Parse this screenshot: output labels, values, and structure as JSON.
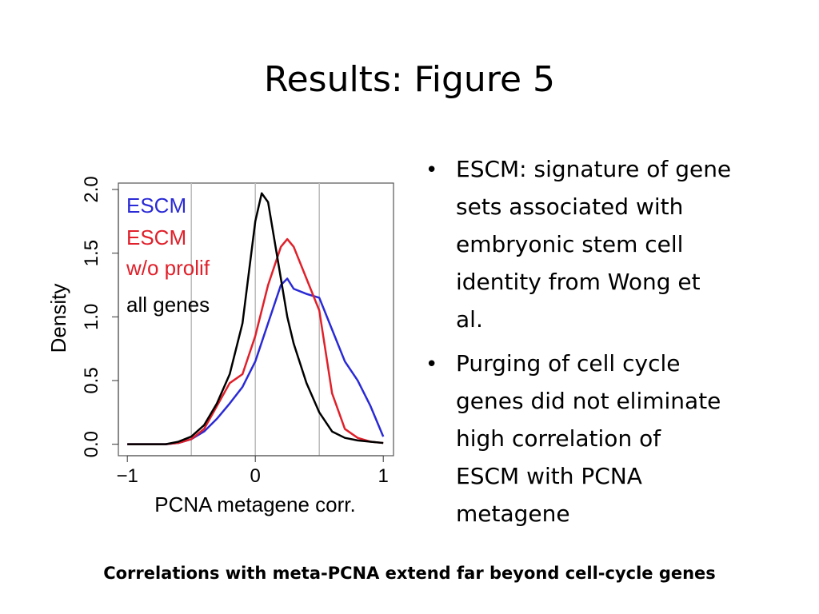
{
  "slide_title": "Results: Figure 5",
  "bullets": [
    [
      "ESCM: signature of gene",
      "sets associated with",
      "embryonic stem cell",
      "identity from Wong et",
      "al."
    ],
    [
      "Purging of cell cycle",
      "genes did not eliminate",
      "high correlation of",
      "ESCM with PCNA",
      "metagene"
    ]
  ],
  "caption": "Correlations with meta-PCNA extend far beyond cell-cycle genes",
  "chart_data": {
    "type": "line",
    "xlabel": "PCNA metagene corr.",
    "ylabel": "Density",
    "x": [
      -1,
      -0.7,
      -0.6,
      -0.5,
      -0.4,
      -0.3,
      -0.2,
      -0.1,
      0,
      0.05,
      0.1,
      0.2,
      0.25,
      0.3,
      0.4,
      0.5,
      0.6,
      0.7,
      0.8,
      0.9,
      1
    ],
    "series": [
      {
        "name": "ESCM",
        "color": "#2a2ad6",
        "values": [
          0,
          0,
          0.01,
          0.04,
          0.1,
          0.2,
          0.32,
          0.45,
          0.65,
          0.8,
          0.95,
          1.25,
          1.3,
          1.22,
          1.18,
          1.15,
          0.9,
          0.65,
          0.5,
          0.3,
          0.06
        ]
      },
      {
        "name": "ESCM\nw/o prolif",
        "color": "#e0202a",
        "values": [
          0,
          0,
          0.01,
          0.04,
          0.12,
          0.3,
          0.48,
          0.55,
          0.85,
          1.05,
          1.25,
          1.55,
          1.61,
          1.55,
          1.3,
          1.05,
          0.4,
          0.12,
          0.05,
          0.02,
          0.01
        ]
      },
      {
        "name": "all genes",
        "color": "#000000",
        "values": [
          0,
          0,
          0.02,
          0.06,
          0.15,
          0.32,
          0.55,
          0.95,
          1.75,
          1.97,
          1.9,
          1.3,
          1.0,
          0.79,
          0.48,
          0.25,
          0.1,
          0.05,
          0.03,
          0.02,
          0.01
        ]
      }
    ],
    "xlim": [
      -1.07,
      1.08
    ],
    "ylim": [
      -0.09,
      2.05
    ],
    "xticks": [
      {
        "value": -1,
        "label": "−1"
      },
      0,
      1
    ],
    "yticks": [
      {
        "value": 0,
        "label": "0.0"
      },
      0.5,
      {
        "value": 1,
        "label": "1.0"
      },
      1.5,
      {
        "value": 2,
        "label": "2.0"
      }
    ],
    "vlines": [
      -0.5,
      0,
      0.5
    ],
    "vline_color": "#bbbbbb"
  }
}
